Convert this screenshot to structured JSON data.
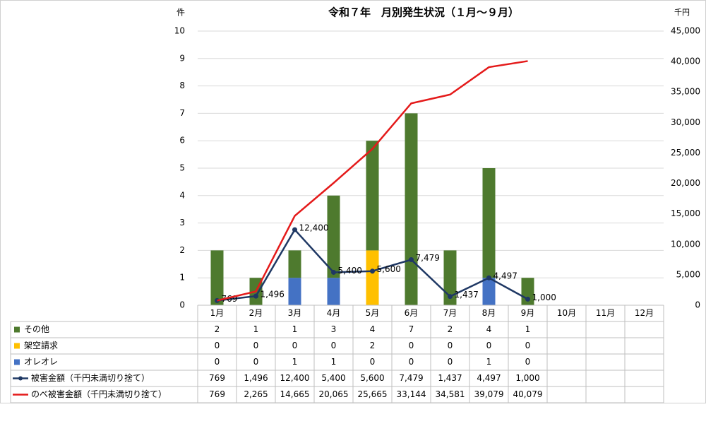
{
  "chart_data": {
    "type": "bar-line",
    "title": "令和７年　月別発生状況（１月～９月）",
    "y_label": "件",
    "y2_label": "千円",
    "categories": [
      "1月",
      "2月",
      "3月",
      "4月",
      "5月",
      "6月",
      "7月",
      "8月",
      "9月",
      "10月",
      "11月",
      "12月"
    ],
    "ylim": [
      0,
      10
    ],
    "yticks": [
      0,
      1,
      2,
      3,
      4,
      5,
      6,
      7,
      8,
      9,
      10
    ],
    "y2lim": [
      0,
      45000
    ],
    "y2ticks": [
      0,
      {
        "value": 5000,
        "label": "5,000"
      },
      {
        "value": 10000,
        "label": "10,000"
      },
      {
        "value": 15000,
        "label": "15,000"
      },
      {
        "value": 20000,
        "label": "20,000"
      },
      {
        "value": 25000,
        "label": "25,000"
      },
      {
        "value": 30000,
        "label": "30,000"
      },
      {
        "value": 35000,
        "label": "35,000"
      },
      {
        "value": 40000,
        "label": "40,000"
      },
      {
        "value": 45000,
        "label": "45,000"
      }
    ],
    "grid": true,
    "stacked": true,
    "series": [
      {
        "name": "その他",
        "type": "bar",
        "color": "#4e7a2e",
        "values": [
          2,
          1,
          1,
          3,
          4,
          7,
          2,
          4,
          1,
          null,
          null,
          null
        ]
      },
      {
        "name": "架空請求",
        "type": "bar",
        "color": "#ffc000",
        "values": [
          0,
          0,
          0,
          0,
          2,
          0,
          0,
          0,
          0,
          null,
          null,
          null
        ]
      },
      {
        "name": "オレオレ",
        "type": "bar",
        "color": "#4472c4",
        "values": [
          0,
          0,
          1,
          1,
          0,
          0,
          0,
          1,
          0,
          null,
          null,
          null
        ]
      },
      {
        "name": "被害金額（千円未満切り捨て）",
        "type": "line",
        "axis": "y2",
        "color": "#1f3864",
        "markers": true,
        "data_labels": true,
        "values": [
          769,
          1496,
          12400,
          5400,
          5600,
          7479,
          1437,
          4497,
          1000,
          null,
          null,
          null
        ],
        "value_labels": [
          "769",
          "1,496",
          "12,400",
          "5,400",
          "5,600",
          "7,479",
          "1,437",
          "4,497",
          "1,000",
          null,
          null,
          null
        ]
      },
      {
        "name": "のべ被害金額（千円未満切り捨て）",
        "type": "line",
        "axis": "y2",
        "color": "#e41a1a",
        "markers": false,
        "data_labels": false,
        "values": [
          769,
          2265,
          14665,
          20065,
          25665,
          33144,
          34581,
          39079,
          40079,
          null,
          null,
          null
        ],
        "value_labels": [
          "769",
          "2,265",
          "14,665",
          "20,065",
          "25,665",
          "33,144",
          "34,581",
          "39,079",
          "40,079",
          null,
          null,
          null
        ]
      }
    ]
  }
}
